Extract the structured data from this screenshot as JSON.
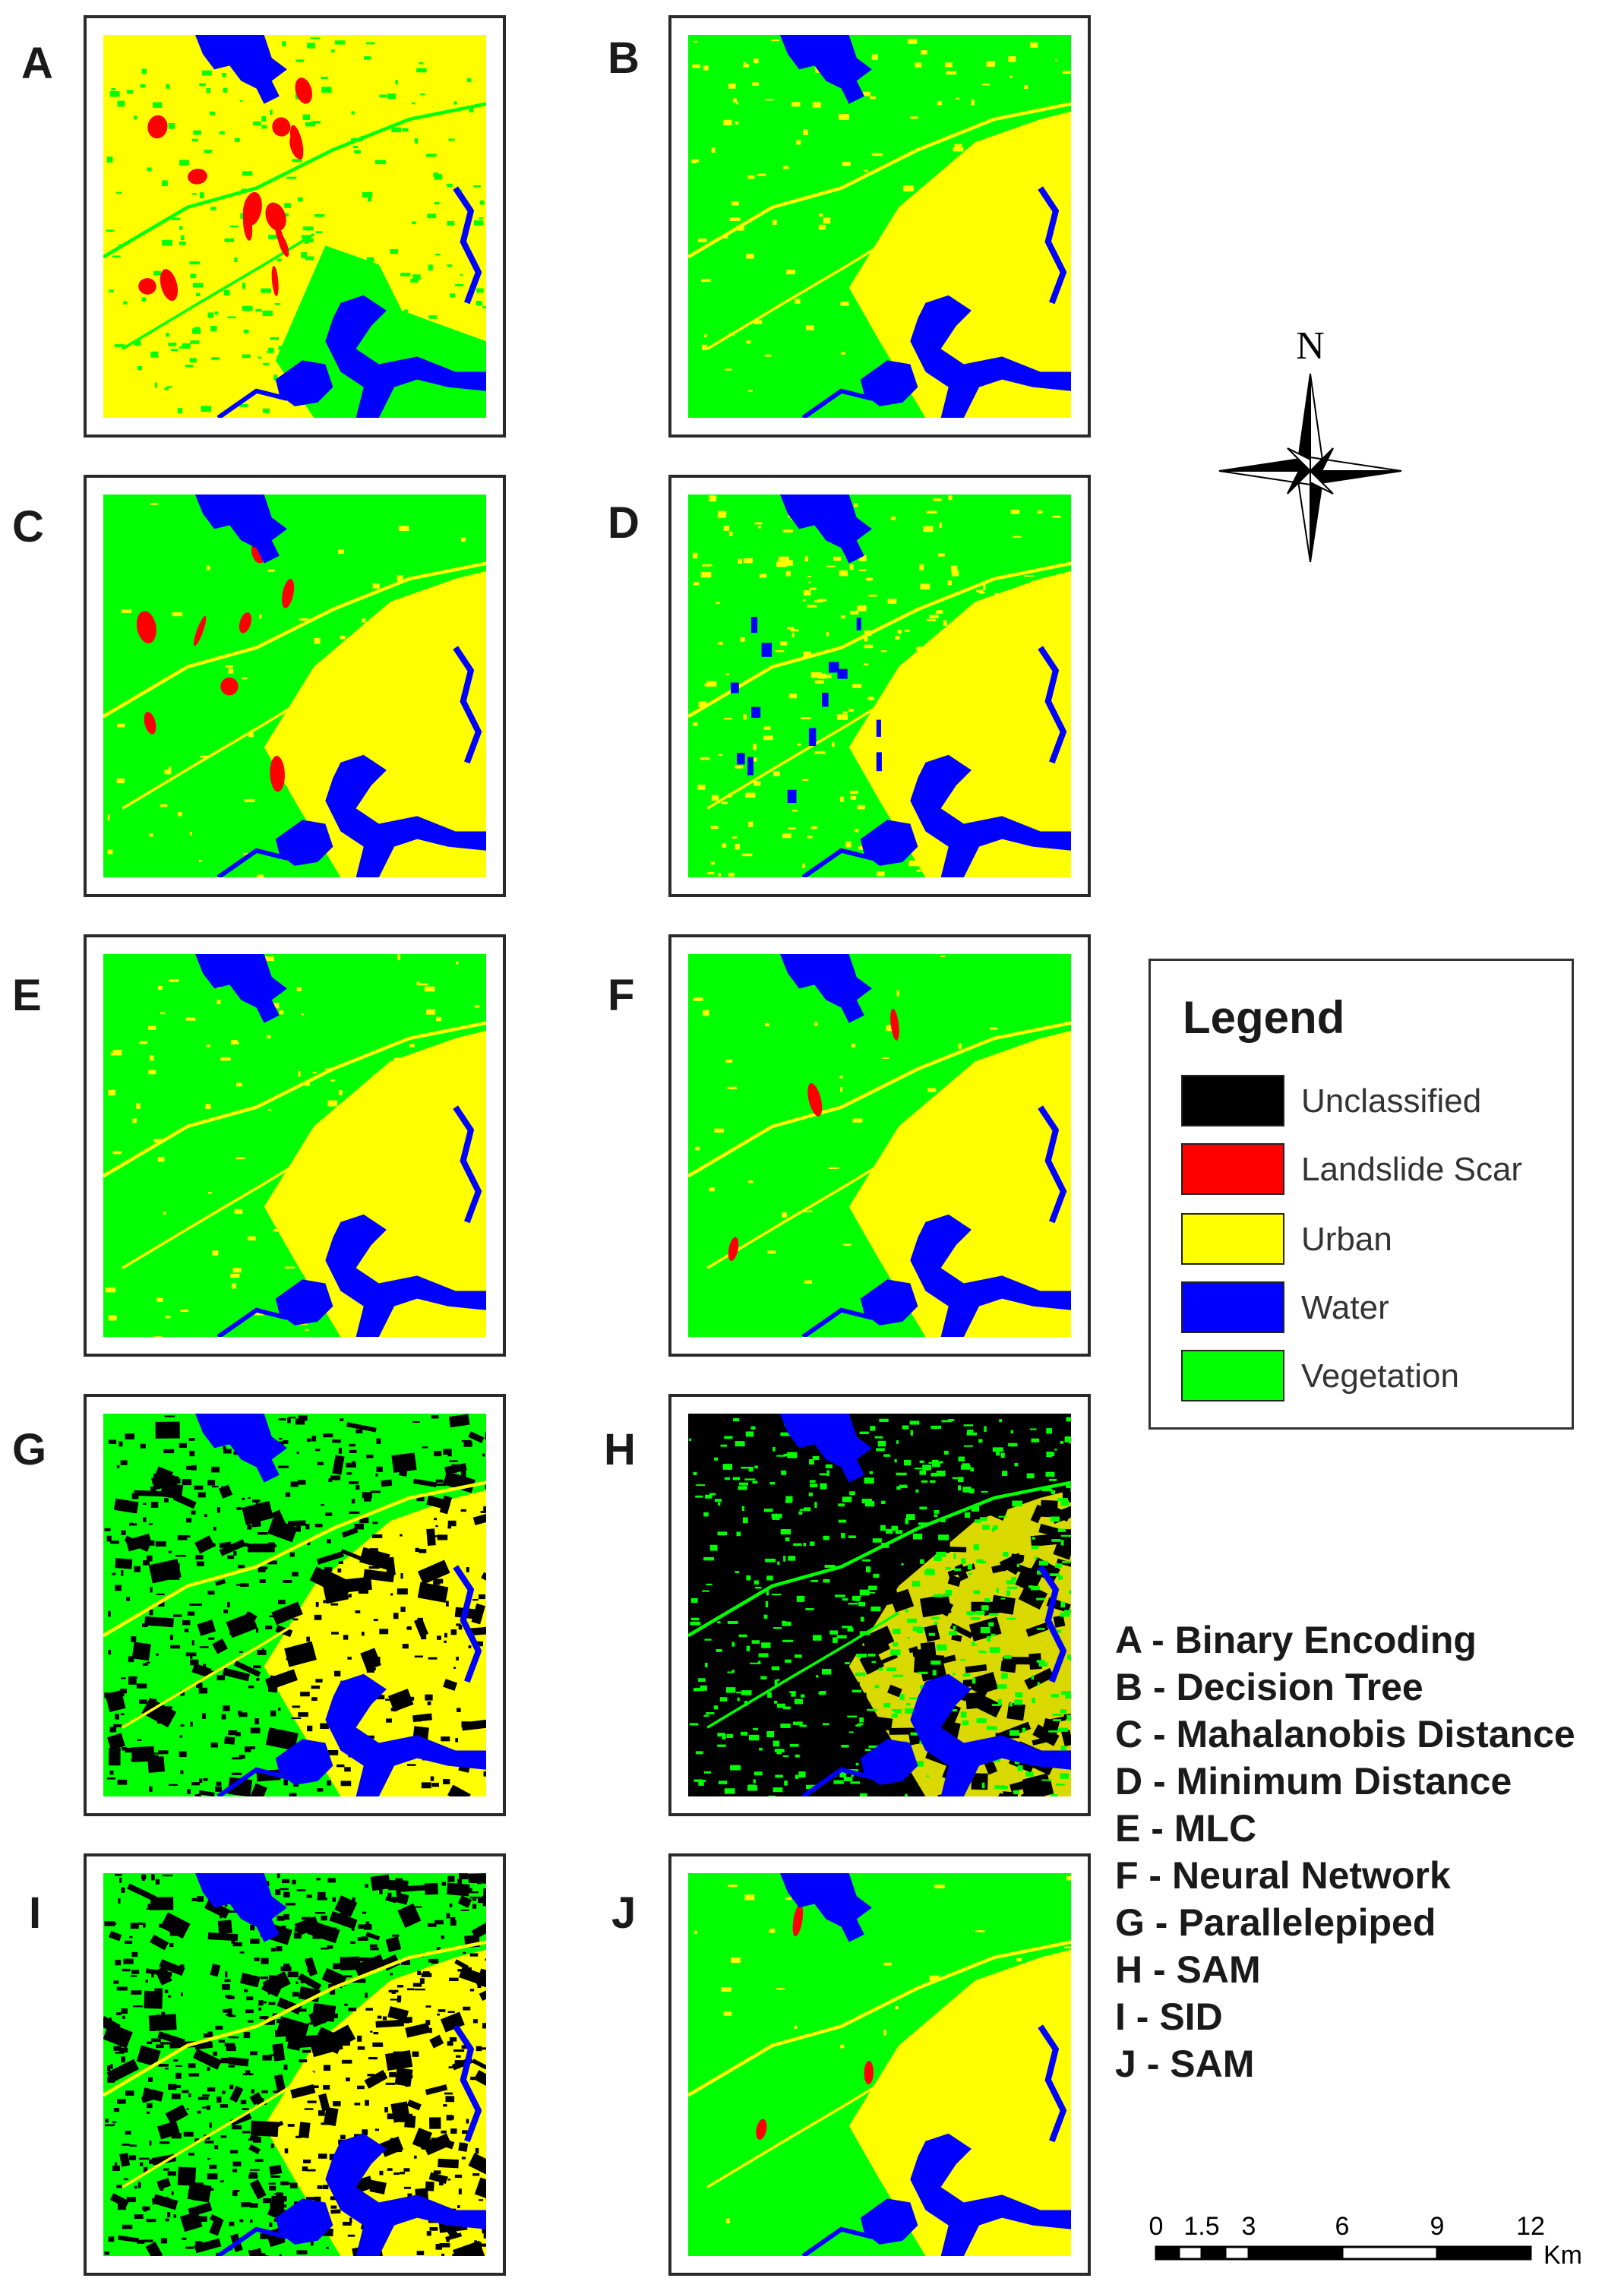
{
  "panels": [
    {
      "id": "A",
      "label": "A"
    },
    {
      "id": "B",
      "label": "B"
    },
    {
      "id": "C",
      "label": "C"
    },
    {
      "id": "D",
      "label": "D"
    },
    {
      "id": "E",
      "label": "E"
    },
    {
      "id": "F",
      "label": "F"
    },
    {
      "id": "G",
      "label": "G"
    },
    {
      "id": "H",
      "label": "H"
    },
    {
      "id": "I",
      "label": "I"
    },
    {
      "id": "J",
      "label": "J"
    }
  ],
  "compass": {
    "north_label": "N"
  },
  "legend": {
    "title": "Legend",
    "items": [
      {
        "label": "Unclassified",
        "color": "#000000"
      },
      {
        "label": "Landslide Scar",
        "color": "#ff0000"
      },
      {
        "label": "Urban",
        "color": "#ffff00"
      },
      {
        "label": "Water",
        "color": "#0000ff"
      },
      {
        "label": "Vegetation",
        "color": "#00ff00"
      }
    ]
  },
  "methods": [
    "A - Binary Encoding",
    "B - Decision Tree",
    "C - Mahalanobis Distance",
    "D - Minimum Distance",
    "E - MLC",
    "F - Neural Network",
    "G - Parallelepiped",
    "H - SAM",
    "I - SID",
    "J - SAM"
  ],
  "scalebar": {
    "ticks": [
      "0",
      "1.5",
      "3",
      "6",
      "9",
      "12"
    ],
    "unit": "Km"
  }
}
